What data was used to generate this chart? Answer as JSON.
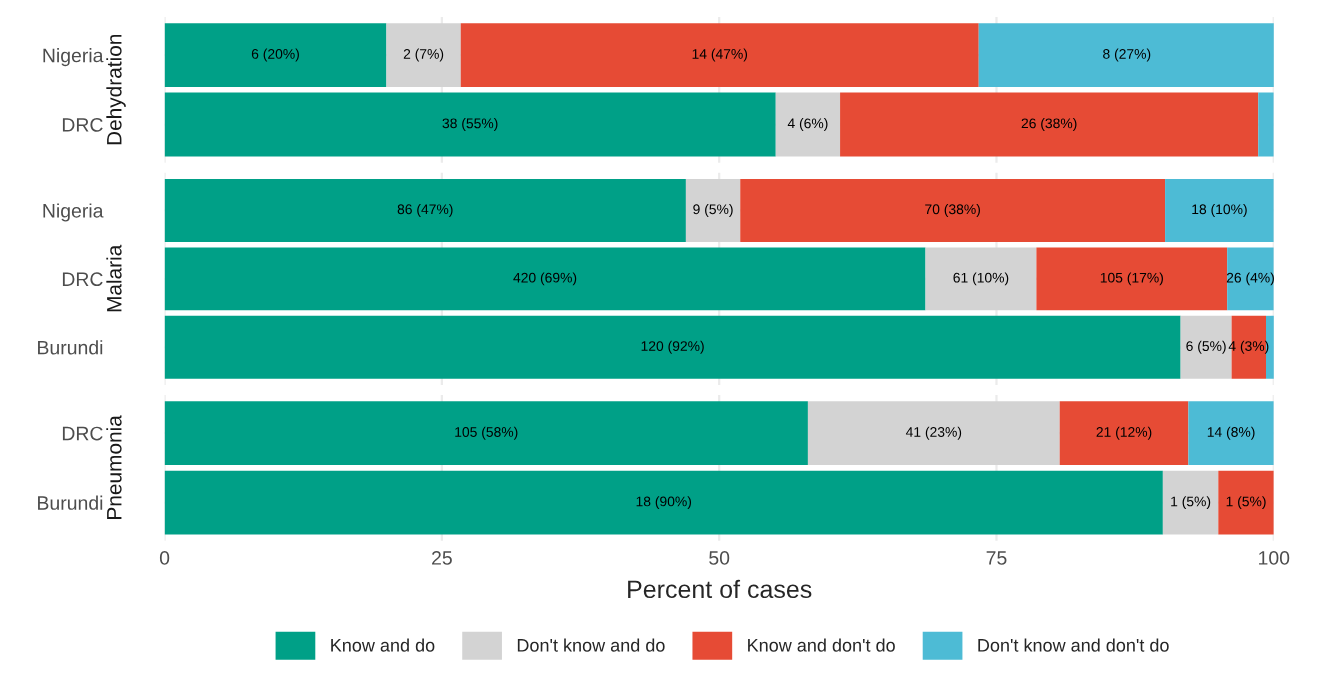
{
  "chart_data": [
    {
      "type": "bar",
      "orientation": "horizontal",
      "stacked": true,
      "ylabel": "Dehydration",
      "categories": [
        "Nigeria",
        "DRC"
      ],
      "xlim": [
        0,
        100
      ],
      "xticks": [
        0,
        25,
        50,
        75,
        100
      ],
      "grid": true,
      "tick_labels": "y",
      "legend": "bottom",
      "series": [
        {
          "name": "Know and do",
          "color": "#00a087",
          "values": [
            20.0,
            55.1
          ],
          "value_labels": [
            "6 (20%)",
            "38 (55%)"
          ]
        },
        {
          "name": "Don't know and do",
          "color": "#d3d3d3",
          "values": [
            6.7,
            5.8
          ],
          "value_labels": [
            "2 (7%)",
            "4 (6%)"
          ]
        },
        {
          "name": "Know and don't do",
          "color": "#e64b35",
          "values": [
            46.7,
            37.7
          ],
          "value_labels": [
            "14 (47%)",
            "26 (38%)"
          ]
        },
        {
          "name": "Don't know and don't do",
          "color": "#4dbbd5",
          "values": [
            26.7,
            1.4
          ],
          "value_labels": [
            "8 (27%)",
            null
          ]
        }
      ]
    },
    {
      "type": "bar",
      "orientation": "horizontal",
      "stacked": true,
      "ylabel": "Malaria",
      "categories": [
        "Nigeria",
        "DRC",
        "Burundi"
      ],
      "xlim": [
        0,
        100
      ],
      "xticks": [
        0,
        25,
        50,
        75,
        100
      ],
      "grid": true,
      "tick_labels": "y",
      "series": [
        {
          "color": "#00a087",
          "values": [
            47.0,
            68.6,
            91.6
          ],
          "value_labels": [
            "86 (47%)",
            "420 (69%)",
            "120 (92%)"
          ]
        },
        {
          "color": "#d3d3d3",
          "values": [
            4.9,
            10.0,
            4.6
          ],
          "value_labels": [
            "9 (5%)",
            "61 (10%)",
            "6 (5%)"
          ]
        },
        {
          "color": "#e64b35",
          "values": [
            38.3,
            17.2,
            3.1
          ],
          "value_labels": [
            "70 (38%)",
            "105 (17%)",
            "4 (3%)"
          ]
        },
        {
          "color": "#4dbbd5",
          "values": [
            9.8,
            4.2,
            0.8
          ],
          "value_labels": [
            "18 (10%)",
            "26 (4%)",
            null
          ]
        }
      ]
    },
    {
      "type": "bar",
      "orientation": "horizontal",
      "stacked": true,
      "ylabel": "Pneumonia",
      "xlabel": "Percent of cases",
      "categories": [
        "DRC",
        "Burundi"
      ],
      "xlim": [
        0,
        100
      ],
      "xticks": [
        0,
        25,
        50,
        75,
        100
      ],
      "grid": true,
      "series": [
        {
          "color": "#00a087",
          "values": [
            58.0,
            90.0
          ],
          "value_labels": [
            "105 (58%)",
            "18 (90%)"
          ]
        },
        {
          "color": "#d3d3d3",
          "values": [
            22.7,
            5.0
          ],
          "value_labels": [
            "41 (23%)",
            "1 (5%)"
          ]
        },
        {
          "color": "#e64b35",
          "values": [
            11.6,
            5.0
          ],
          "value_labels": [
            "21 (12%)",
            "1 (5%)"
          ]
        },
        {
          "color": "#4dbbd5",
          "values": [
            7.7,
            0
          ],
          "value_labels": [
            "14 (8%)",
            null
          ]
        }
      ]
    }
  ]
}
